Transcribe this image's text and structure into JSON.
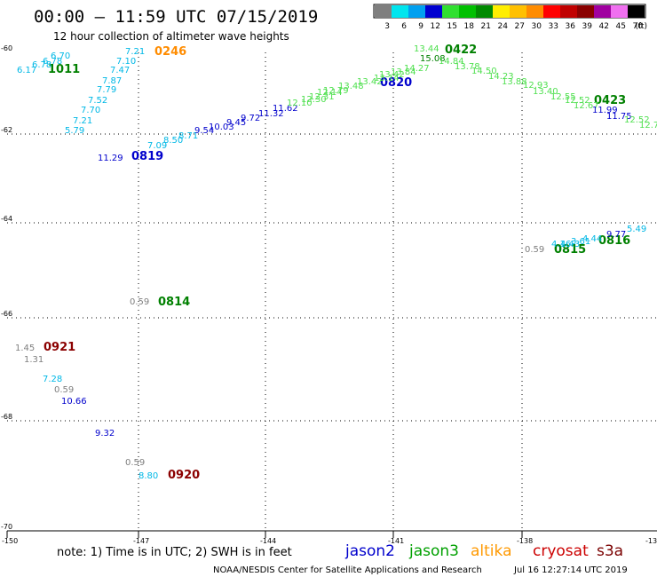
{
  "title": "00:00 – 11:59 UTC 07/15/2019",
  "subtitle": "12 hour collection of altimeter wave heights",
  "scale": {
    "labels": [
      "3",
      "6",
      "9",
      "12",
      "15",
      "18",
      "21",
      "24",
      "27",
      "30",
      "33",
      "36",
      "39",
      "42",
      "45",
      "70"
    ],
    "unit": "(ft)",
    "colors": [
      "#7f7f7f",
      "#00e5ee",
      "#00a0f0",
      "#0000d0",
      "#30e030",
      "#00c000",
      "#008a00",
      "#ffee00",
      "#ffc000",
      "#ff8c00",
      "#ff0000",
      "#c00000",
      "#8a0000",
      "#a000a0",
      "#f070f0",
      "#000000"
    ]
  },
  "map": {
    "lat_labels": [
      "-60",
      "-62",
      "-64",
      "-66",
      "-68",
      "-70"
    ],
    "lon_labels": [
      "-150",
      "-147",
      "-144",
      "-141",
      "-138",
      "-13"
    ]
  },
  "note": "note: 1) Time is in UTC; 2) SWH is in feet",
  "satellites": [
    {
      "name": "jason2",
      "color": "#0000cc"
    },
    {
      "name": "jason3",
      "color": "#00a000"
    },
    {
      "name": "altika",
      "color": "#ff9900"
    },
    {
      "name": "cryosat",
      "color": "#cc0000"
    },
    {
      "name": "s3a",
      "color": "#7a0000"
    }
  ],
  "credit": "NOAA/NESDIS Center for Satellite Applications and Research",
  "generated": "Jul 16 12:27:14 UTC 2019",
  "track_labels": [
    {
      "text": "0246",
      "color": "#ff8c00"
    },
    {
      "text": "1011",
      "color": "#008000"
    },
    {
      "text": "0819",
      "color": "#0000cc"
    },
    {
      "text": "0820",
      "color": "#0000cc"
    },
    {
      "text": "0422",
      "color": "#008000"
    },
    {
      "text": "0423",
      "color": "#008000"
    },
    {
      "text": "0815",
      "color": "#008000"
    },
    {
      "text": "0816",
      "color": "#008000"
    },
    {
      "text": "0814",
      "color": "#008000"
    },
    {
      "text": "0921",
      "color": "#8b0000"
    },
    {
      "text": "0920",
      "color": "#8b0000"
    }
  ],
  "values": [
    {
      "text": "6.70",
      "color": "#00b8e6"
    },
    {
      "text": "6.78",
      "color": "#00b8e6"
    },
    {
      "text": "6.78",
      "color": "#00b8e6"
    },
    {
      "text": "6.17",
      "color": "#00b8e6"
    },
    {
      "text": "7.21",
      "color": "#00b8e6"
    },
    {
      "text": "7.10",
      "color": "#00b8e6"
    },
    {
      "text": "7.47",
      "color": "#00b8e6"
    },
    {
      "text": "7.87",
      "color": "#00b8e6"
    },
    {
      "text": "7.79",
      "color": "#00b8e6"
    },
    {
      "text": "7.52",
      "color": "#00b8e6"
    },
    {
      "text": "7.70",
      "color": "#00b8e6"
    },
    {
      "text": "7.21",
      "color": "#00b8e6"
    },
    {
      "text": "5.79",
      "color": "#00b8e6"
    },
    {
      "text": "11.29",
      "color": "#0000cc"
    },
    {
      "text": "7.09",
      "color": "#00b8e6"
    },
    {
      "text": "8.50",
      "color": "#00b8e6"
    },
    {
      "text": "8.71",
      "color": "#00b8e6"
    },
    {
      "text": "9.54",
      "color": "#0000cc"
    },
    {
      "text": "10.03",
      "color": "#0000cc"
    },
    {
      "text": "9.45",
      "color": "#0000cc"
    },
    {
      "text": "9.72",
      "color": "#0000cc"
    },
    {
      "text": "11.32",
      "color": "#0000cc"
    },
    {
      "text": "11.62",
      "color": "#0000cc"
    },
    {
      "text": "12.10",
      "color": "#50e050"
    },
    {
      "text": "12.30",
      "color": "#50e050"
    },
    {
      "text": "12.31",
      "color": "#50e050"
    },
    {
      "text": "12.14",
      "color": "#50e050"
    },
    {
      "text": "12.79",
      "color": "#50e050"
    },
    {
      "text": "13.48",
      "color": "#50e050"
    },
    {
      "text": "13.42",
      "color": "#50e050"
    },
    {
      "text": "13.14",
      "color": "#50e050"
    },
    {
      "text": "13.42",
      "color": "#50e050"
    },
    {
      "text": "13.84",
      "color": "#50e050"
    },
    {
      "text": "14.27",
      "color": "#50e050"
    },
    {
      "text": "13.44",
      "color": "#50e050"
    },
    {
      "text": "15.08",
      "color": "#008000"
    },
    {
      "text": "14.84",
      "color": "#50e050"
    },
    {
      "text": "13.78",
      "color": "#50e050"
    },
    {
      "text": "14.50",
      "color": "#50e050"
    },
    {
      "text": "14.23",
      "color": "#50e050"
    },
    {
      "text": "13.88",
      "color": "#50e050"
    },
    {
      "text": "12.93",
      "color": "#50e050"
    },
    {
      "text": "13.40",
      "color": "#50e050"
    },
    {
      "text": "12.55",
      "color": "#50e050"
    },
    {
      "text": "12.52",
      "color": "#50e050"
    },
    {
      "text": "12.67",
      "color": "#50e050"
    },
    {
      "text": "11.99",
      "color": "#0000cc"
    },
    {
      "text": "11.75",
      "color": "#0000cc"
    },
    {
      "text": "12.52",
      "color": "#50e050"
    },
    {
      "text": "12.7",
      "color": "#50e050"
    },
    {
      "text": "9.77",
      "color": "#0000cc"
    },
    {
      "text": "5.49",
      "color": "#00b8e6"
    },
    {
      "text": "0.59",
      "color": "#7f7f7f"
    },
    {
      "text": "4.16",
      "color": "#00b8e6"
    },
    {
      "text": "4.43",
      "color": "#00b8e6"
    },
    {
      "text": "3.61",
      "color": "#00b8e6"
    },
    {
      "text": "4.44",
      "color": "#00b8e6"
    },
    {
      "text": "0.59",
      "color": "#7f7f7f"
    },
    {
      "text": "1.45",
      "color": "#7f7f7f"
    },
    {
      "text": "1.31",
      "color": "#7f7f7f"
    },
    {
      "text": "7.28",
      "color": "#00b8e6"
    },
    {
      "text": "0.59",
      "color": "#7f7f7f"
    },
    {
      "text": "10.66",
      "color": "#0000cc"
    },
    {
      "text": "9.32",
      "color": "#0000cc"
    },
    {
      "text": "0.59",
      "color": "#7f7f7f"
    },
    {
      "text": "8.80",
      "color": "#00b8e6"
    }
  ]
}
